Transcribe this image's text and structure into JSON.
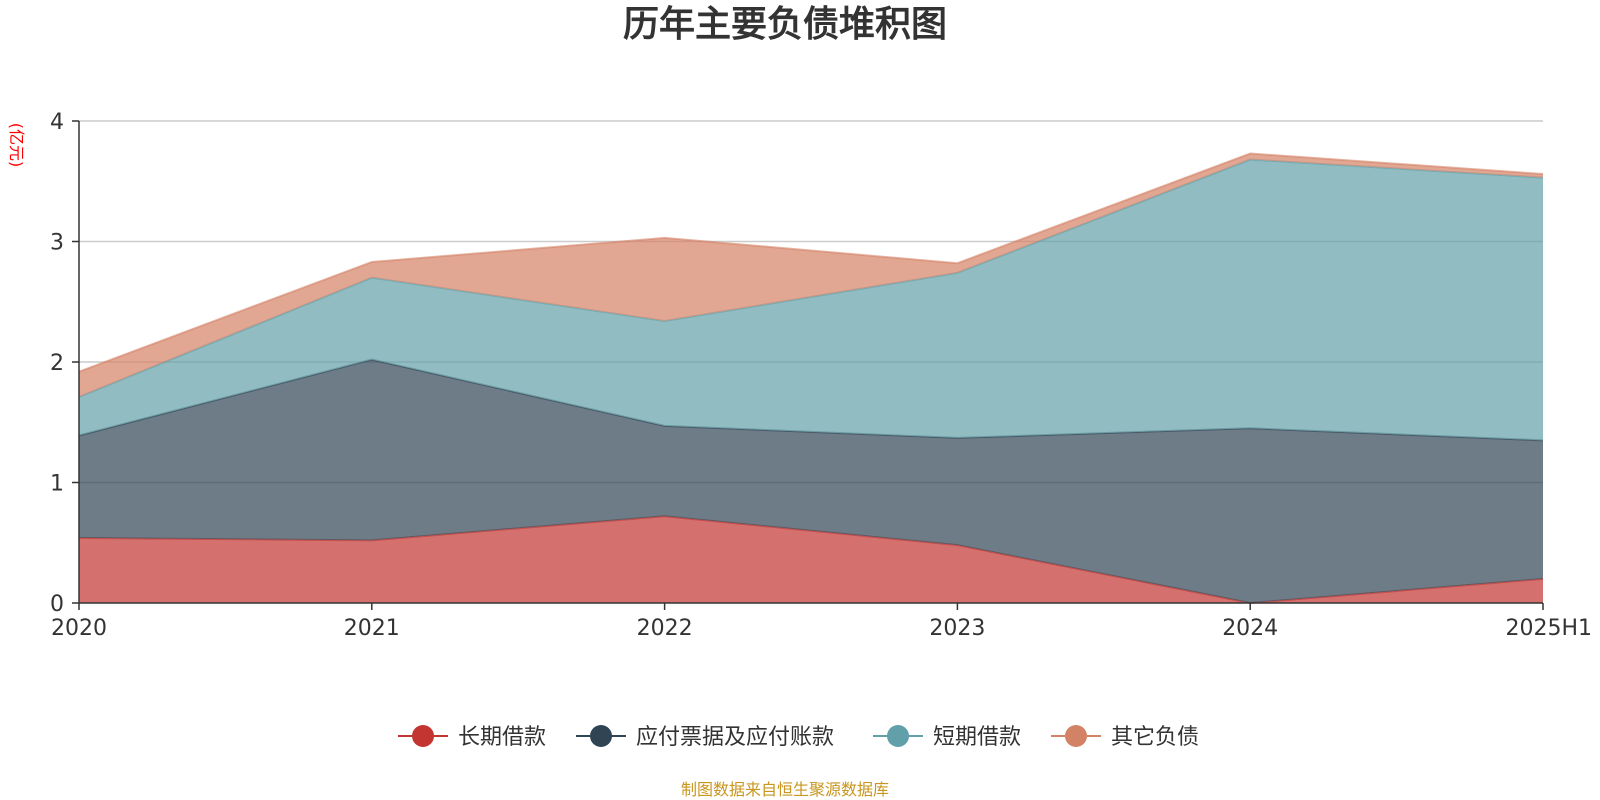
{
  "chart_data": {
    "type": "area",
    "stacked": true,
    "title": "历年主要负债堆积图",
    "ylabel": "(亿元)",
    "xlabel": "",
    "x": [
      "2020",
      "2021",
      "2022",
      "2023",
      "2024",
      "2025H1"
    ],
    "ylim": [
      0,
      4
    ],
    "yticks": [
      "0",
      "1",
      "2",
      "3",
      "4"
    ],
    "grid": true,
    "legend_position": "bottom",
    "series": [
      {
        "name": "长期借款",
        "values": [
          0.54,
          0.52,
          0.72,
          0.48,
          0.0,
          0.2
        ],
        "color": "#c23531"
      },
      {
        "name": "应付票据及应付账款",
        "values": [
          0.85,
          1.5,
          0.75,
          0.89,
          1.45,
          1.15
        ],
        "color": "#2f4554"
      },
      {
        "name": "短期借款",
        "values": [
          0.32,
          0.68,
          0.87,
          1.37,
          2.23,
          2.18
        ],
        "color": "#61a0a8"
      },
      {
        "name": "其它负债",
        "values": [
          0.21,
          0.13,
          0.69,
          0.08,
          0.05,
          0.03
        ],
        "color": "#d48265"
      }
    ]
  },
  "source_text": "制图数据来自恒生聚源数据库",
  "colors": {
    "unit_label": "#ff0000",
    "source_text": "#c8961e",
    "axis": "#333333",
    "grid": "#cccccc"
  }
}
